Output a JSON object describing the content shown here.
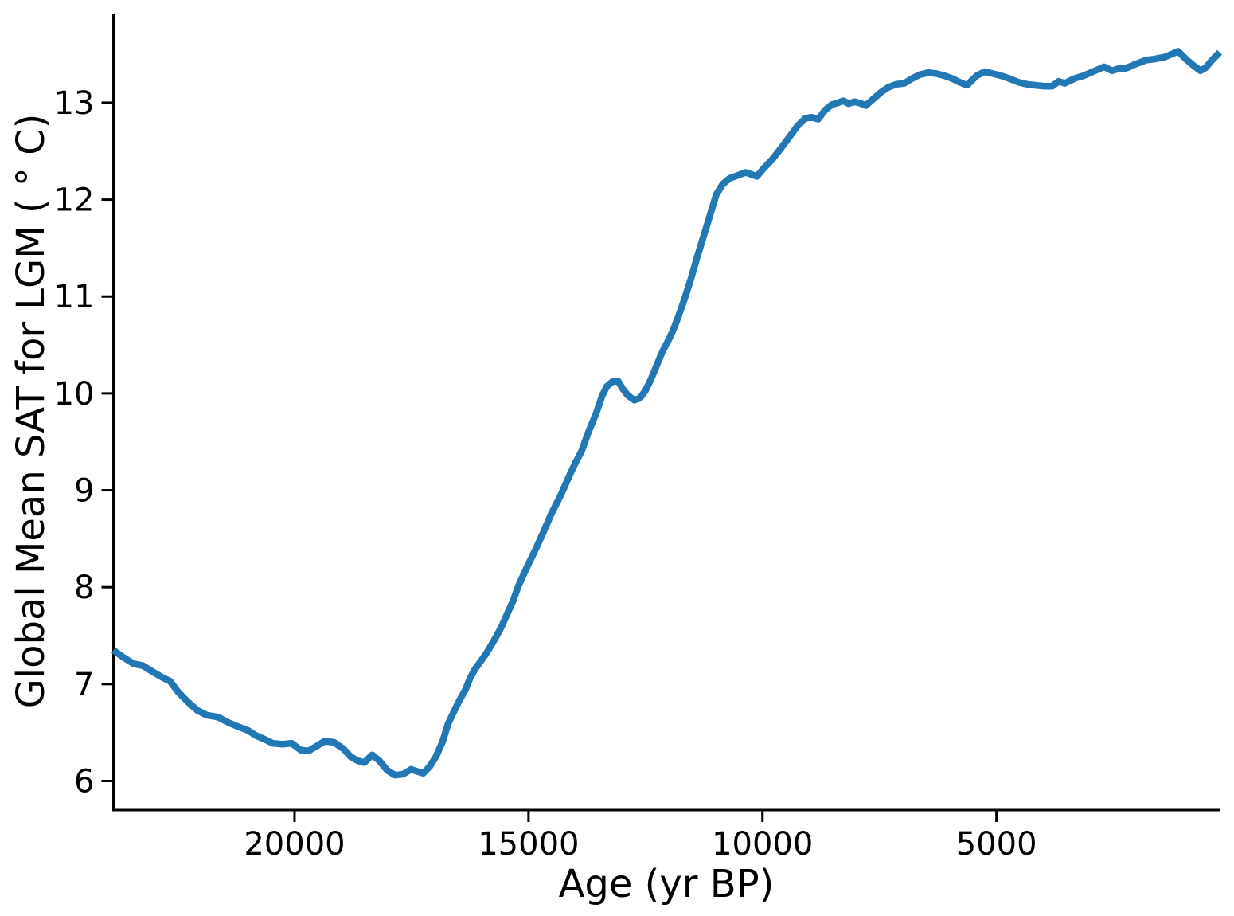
{
  "chart_data": {
    "type": "line",
    "title": "",
    "xlabel": "Age (yr BP)",
    "ylabel": "Global Mean SAT for LGM ( ° C)",
    "x_ticks": [
      20000,
      15000,
      10000,
      5000
    ],
    "y_ticks": [
      6,
      7,
      8,
      9,
      10,
      11,
      12,
      13
    ],
    "xlim": [
      23870,
      230
    ],
    "x_axis_reversed": true,
    "ylim": [
      5.7,
      13.92
    ],
    "grid": false,
    "legend": null,
    "axis_color": "#000000",
    "series": [
      {
        "color": "#2277b5",
        "points": [
          [
            23870,
            7.35
          ],
          [
            23670,
            7.28
          ],
          [
            23440,
            7.21
          ],
          [
            23240,
            7.19
          ],
          [
            23040,
            7.13
          ],
          [
            22830,
            7.07
          ],
          [
            22660,
            7.03
          ],
          [
            22490,
            6.92
          ],
          [
            22290,
            6.82
          ],
          [
            22080,
            6.73
          ],
          [
            21880,
            6.68
          ],
          [
            21640,
            6.66
          ],
          [
            21400,
            6.6
          ],
          [
            21200,
            6.56
          ],
          [
            20990,
            6.52
          ],
          [
            20830,
            6.47
          ],
          [
            20640,
            6.43
          ],
          [
            20470,
            6.39
          ],
          [
            20260,
            6.38
          ],
          [
            20060,
            6.39
          ],
          [
            19870,
            6.32
          ],
          [
            19700,
            6.31
          ],
          [
            19530,
            6.36
          ],
          [
            19360,
            6.41
          ],
          [
            19160,
            6.4
          ],
          [
            18950,
            6.33
          ],
          [
            18800,
            6.25
          ],
          [
            18650,
            6.21
          ],
          [
            18510,
            6.19
          ],
          [
            18340,
            6.27
          ],
          [
            18190,
            6.21
          ],
          [
            18020,
            6.11
          ],
          [
            17850,
            6.06
          ],
          [
            17680,
            6.07
          ],
          [
            17510,
            6.12
          ],
          [
            17390,
            6.1
          ],
          [
            17250,
            6.08
          ],
          [
            17110,
            6.15
          ],
          [
            16980,
            6.25
          ],
          [
            16840,
            6.4
          ],
          [
            16720,
            6.59
          ],
          [
            16600,
            6.71
          ],
          [
            16480,
            6.83
          ],
          [
            16350,
            6.94
          ],
          [
            16250,
            7.06
          ],
          [
            16150,
            7.15
          ],
          [
            16030,
            7.23
          ],
          [
            15910,
            7.31
          ],
          [
            15810,
            7.39
          ],
          [
            15690,
            7.49
          ],
          [
            15570,
            7.6
          ],
          [
            15450,
            7.73
          ],
          [
            15330,
            7.86
          ],
          [
            15210,
            8.02
          ],
          [
            15040,
            8.2
          ],
          [
            14860,
            8.38
          ],
          [
            14690,
            8.56
          ],
          [
            14520,
            8.75
          ],
          [
            14310,
            8.95
          ],
          [
            14110,
            9.17
          ],
          [
            13990,
            9.29
          ],
          [
            13870,
            9.4
          ],
          [
            13720,
            9.6
          ],
          [
            13550,
            9.8
          ],
          [
            13430,
            9.97
          ],
          [
            13330,
            10.07
          ],
          [
            13210,
            10.12
          ],
          [
            13090,
            10.13
          ],
          [
            12990,
            10.05
          ],
          [
            12880,
            9.98
          ],
          [
            12740,
            9.93
          ],
          [
            12620,
            9.95
          ],
          [
            12500,
            10.03
          ],
          [
            12380,
            10.15
          ],
          [
            12260,
            10.29
          ],
          [
            12140,
            10.43
          ],
          [
            12040,
            10.52
          ],
          [
            11920,
            10.64
          ],
          [
            11800,
            10.79
          ],
          [
            11670,
            10.97
          ],
          [
            11530,
            11.18
          ],
          [
            11400,
            11.4
          ],
          [
            11260,
            11.62
          ],
          [
            11120,
            11.84
          ],
          [
            10990,
            12.05
          ],
          [
            10850,
            12.16
          ],
          [
            10700,
            12.22
          ],
          [
            10530,
            12.25
          ],
          [
            10360,
            12.28
          ],
          [
            10240,
            12.26
          ],
          [
            10120,
            12.24
          ],
          [
            9960,
            12.33
          ],
          [
            9800,
            12.41
          ],
          [
            9620,
            12.52
          ],
          [
            9420,
            12.65
          ],
          [
            9250,
            12.76
          ],
          [
            9080,
            12.84
          ],
          [
            8950,
            12.85
          ],
          [
            8810,
            12.83
          ],
          [
            8670,
            12.92
          ],
          [
            8520,
            12.98
          ],
          [
            8380,
            13.0
          ],
          [
            8270,
            13.02
          ],
          [
            8160,
            12.99
          ],
          [
            8030,
            13.01
          ],
          [
            7890,
            12.99
          ],
          [
            7790,
            12.97
          ],
          [
            7630,
            13.04
          ],
          [
            7460,
            13.11
          ],
          [
            7310,
            13.16
          ],
          [
            7140,
            13.19
          ],
          [
            6970,
            13.2
          ],
          [
            6800,
            13.25
          ],
          [
            6630,
            13.29
          ],
          [
            6460,
            13.31
          ],
          [
            6290,
            13.3
          ],
          [
            6120,
            13.28
          ],
          [
            5950,
            13.25
          ],
          [
            5780,
            13.21
          ],
          [
            5630,
            13.18
          ],
          [
            5420,
            13.28
          ],
          [
            5250,
            13.32
          ],
          [
            5080,
            13.3
          ],
          [
            4910,
            13.28
          ],
          [
            4730,
            13.25
          ],
          [
            4520,
            13.21
          ],
          [
            4350,
            13.19
          ],
          [
            4180,
            13.18
          ],
          [
            3980,
            13.17
          ],
          [
            3810,
            13.17
          ],
          [
            3670,
            13.22
          ],
          [
            3540,
            13.2
          ],
          [
            3330,
            13.25
          ],
          [
            3130,
            13.28
          ],
          [
            2940,
            13.32
          ],
          [
            2700,
            13.37
          ],
          [
            2530,
            13.33
          ],
          [
            2400,
            13.35
          ],
          [
            2260,
            13.35
          ],
          [
            2020,
            13.4
          ],
          [
            1800,
            13.44
          ],
          [
            1630,
            13.45
          ],
          [
            1410,
            13.47
          ],
          [
            1260,
            13.5
          ],
          [
            1120,
            13.53
          ],
          [
            950,
            13.45
          ],
          [
            780,
            13.38
          ],
          [
            640,
            13.33
          ],
          [
            530,
            13.36
          ],
          [
            410,
            13.43
          ],
          [
            230,
            13.52
          ]
        ]
      }
    ]
  }
}
